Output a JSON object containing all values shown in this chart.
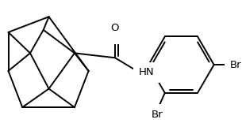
{
  "background": "#ffffff",
  "line_color": "#000000",
  "line_width": 1.4,
  "font_size": 9.5,
  "Br1_label": "Br",
  "Br2_label": "Br",
  "NH_label": "HN",
  "O_label": "O"
}
